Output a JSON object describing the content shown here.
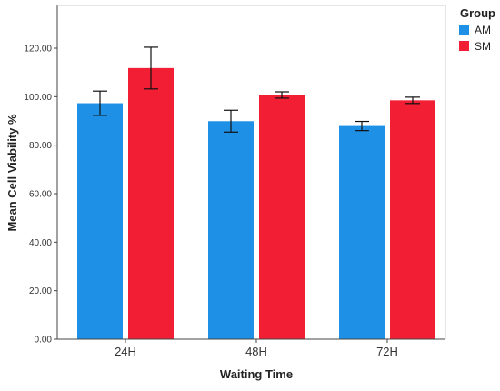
{
  "chart_data": {
    "type": "bar",
    "categories": [
      "24H",
      "48H",
      "72H"
    ],
    "series": [
      {
        "name": "AM",
        "color": "#1e90e6",
        "values": [
          97.3,
          89.9,
          87.9
        ],
        "error_low": [
          92.3,
          85.4,
          86.0
        ],
        "error_high": [
          102.3,
          94.4,
          89.8
        ]
      },
      {
        "name": "SM",
        "color": "#f21e33",
        "values": [
          111.8,
          100.7,
          98.5
        ],
        "error_low": [
          103.2,
          99.4,
          97.2
        ],
        "error_high": [
          120.4,
          102.0,
          99.8
        ]
      }
    ],
    "xlabel": "Waiting Time",
    "ylabel": "Mean Cell Viability %",
    "ylim": [
      0,
      130
    ],
    "yticks": [
      0,
      20,
      40,
      60,
      80,
      100,
      120
    ],
    "ytick_labels": [
      "0.00",
      "20.00",
      "40.00",
      "60.00",
      "80.00",
      "100.00",
      "120.00"
    ],
    "grid": false,
    "legend": {
      "title": "Group",
      "placement": "top-right"
    }
  }
}
